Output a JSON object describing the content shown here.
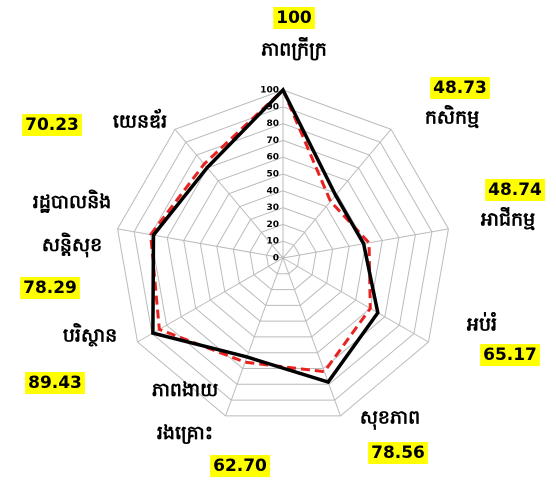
{
  "chart_data": {
    "type": "radar",
    "categories": [
      "ភាពក្រីក្រ",
      "កសិកម្ម",
      "អាជីកម្ម",
      "អប់រំ",
      "សុខភាព",
      "ភាពងាយ\nរងគ្រោះ",
      "បរិស្ថាន",
      "រដ្ឋបាលនិង\nសន្តិសុខ",
      "យេនឌ័រ"
    ],
    "series": [
      {
        "color": "#000000",
        "style": "solid",
        "values": [
          100,
          48.73,
          48.74,
          65.17,
          78.56,
          62.7,
          89.43,
          78.29,
          70.23
        ],
        "value_labels": [
          "100",
          "48.73",
          "48.74",
          "65.17",
          "78.56",
          "62.70",
          "89.43",
          "78.29",
          "70.23"
        ]
      },
      {
        "color": "#e8231f",
        "style": "dashed",
        "values": [
          100,
          44,
          52,
          60,
          72,
          66,
          85,
          80,
          73
        ]
      }
    ],
    "rlim": [
      0,
      100
    ],
    "rticks": [
      0,
      10,
      20,
      30,
      40,
      50,
      60,
      70,
      80,
      90,
      100
    ],
    "grid": true
  }
}
